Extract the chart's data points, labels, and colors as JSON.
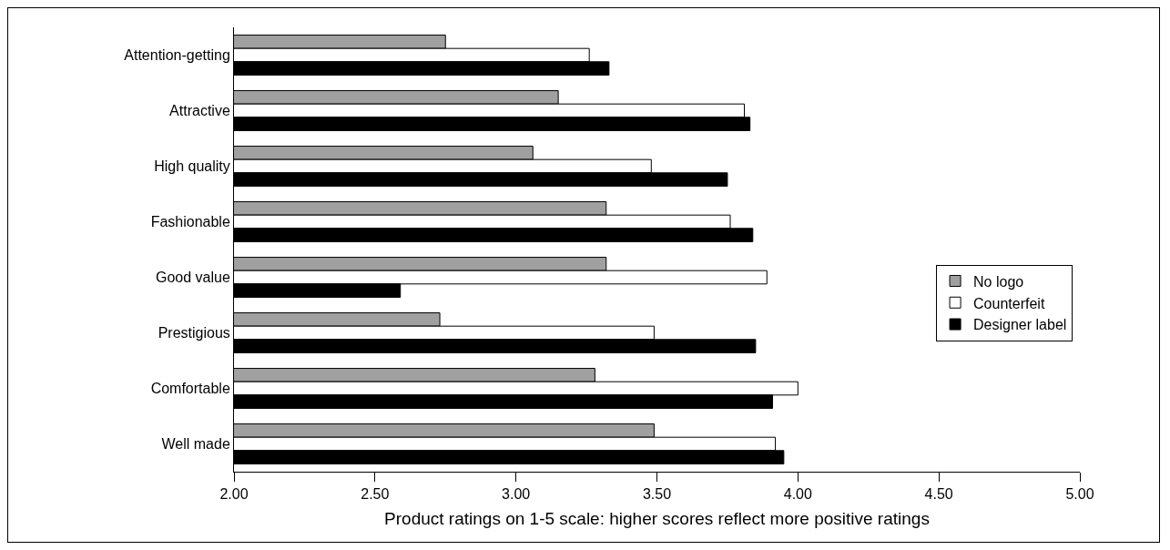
{
  "chart_data": {
    "type": "bar",
    "orientation": "horizontal",
    "xlabel": "Product ratings on 1-5 scale: higher scores reflect more positive ratings",
    "categories": [
      "Attention-getting",
      "Attractive",
      "High quality",
      "Fashionable",
      "Good value",
      "Prestigious",
      "Comfortable",
      "Well made"
    ],
    "series": [
      {
        "name": "No logo",
        "color": "#a0a0a0",
        "values": [
          2.75,
          3.15,
          3.06,
          3.32,
          3.32,
          2.73,
          3.28,
          3.49
        ]
      },
      {
        "name": "Counterfeit",
        "color": "#ffffff",
        "values": [
          3.26,
          3.81,
          3.48,
          3.76,
          3.89,
          3.49,
          4.0,
          3.92
        ]
      },
      {
        "name": "Designer label",
        "color": "#000000",
        "values": [
          3.33,
          3.83,
          3.75,
          3.84,
          2.59,
          3.85,
          3.91,
          3.95
        ]
      }
    ],
    "xlim": [
      2,
      5
    ],
    "xticks": [
      {
        "value": 2,
        "label": "2.00"
      },
      {
        "value": 2.5,
        "label": "2.50"
      },
      {
        "value": 3,
        "label": "3.00"
      },
      {
        "value": 3.5,
        "label": "3.50"
      },
      {
        "value": 4,
        "label": "4.00"
      },
      {
        "value": 4.5,
        "label": "4.50"
      },
      {
        "value": 5,
        "label": "5.00"
      }
    ],
    "grid": false,
    "legend": "right"
  }
}
